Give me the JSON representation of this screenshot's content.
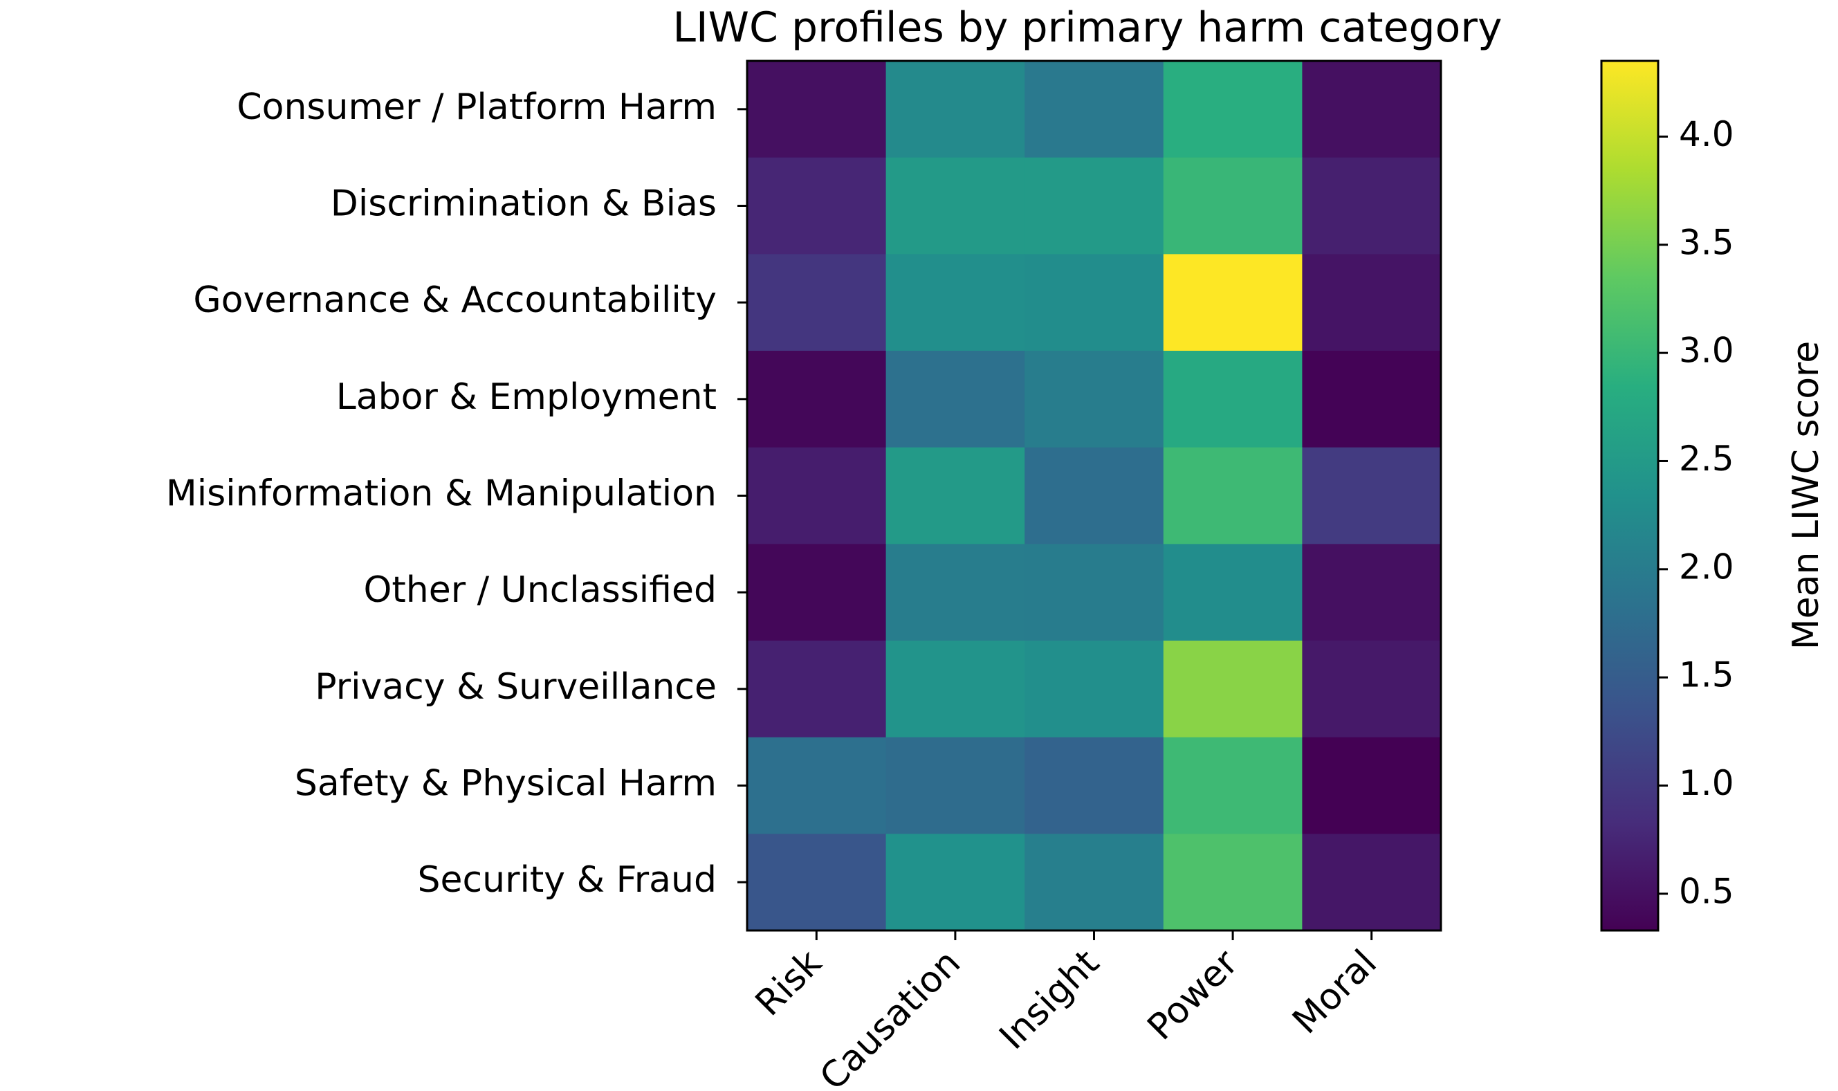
{
  "chart_data": {
    "type": "heatmap",
    "title": "LIWC profiles by primary harm category",
    "xlabel": "",
    "ylabel": "",
    "columns": [
      "Risk",
      "Causation",
      "Insight",
      "Power",
      "Moral"
    ],
    "rows": [
      "Consumer / Platform Harm",
      "Discrimination & Bias",
      "Governance & Accountability",
      "Labor & Employment",
      "Misinformation & Manipulation",
      "Other / Unclassified",
      "Privacy & Surveillance",
      "Safety & Physical Harm",
      "Security & Fraud"
    ],
    "values": [
      [
        0.5,
        2.22,
        1.95,
        2.85,
        0.5
      ],
      [
        0.75,
        2.5,
        2.5,
        3.0,
        0.68
      ],
      [
        0.95,
        2.3,
        2.28,
        4.35,
        0.55
      ],
      [
        0.4,
        1.82,
        2.02,
        2.75,
        0.35
      ],
      [
        0.65,
        2.5,
        1.78,
        3.05,
        1.02
      ],
      [
        0.4,
        2.02,
        2.0,
        2.28,
        0.5
      ],
      [
        0.7,
        2.4,
        2.3,
        3.62,
        0.6
      ],
      [
        1.8,
        1.75,
        1.6,
        3.05,
        0.33
      ],
      [
        1.4,
        2.35,
        2.05,
        3.2,
        0.58
      ]
    ],
    "colormap": "viridis",
    "colorbar": {
      "label": "Mean LIWC score",
      "range": [
        0.33,
        4.35
      ],
      "ticks": [
        0.5,
        1.0,
        1.5,
        2.0,
        2.5,
        3.0,
        3.5,
        4.0
      ],
      "tick_labels": [
        "0.5",
        "1.0",
        "1.5",
        "2.0",
        "2.5",
        "3.0",
        "3.5",
        "4.0"
      ]
    },
    "grid": false
  }
}
